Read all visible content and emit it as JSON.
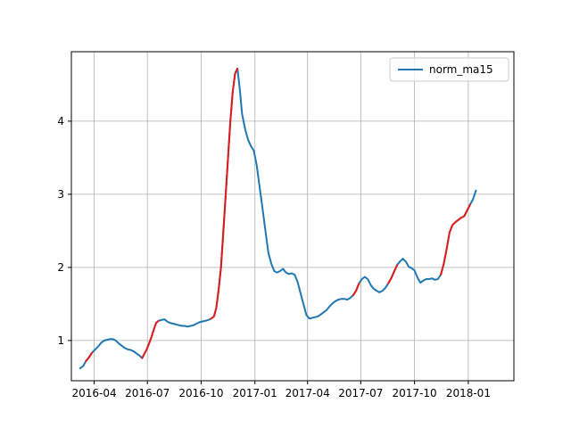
{
  "chart_data": {
    "type": "line",
    "title": "",
    "xlabel": "",
    "ylabel": "",
    "grid": true,
    "legend": {
      "placement": "top-right",
      "entries": [
        "norm_ma15"
      ]
    },
    "x_ticks": [
      "2016-04",
      "2016-07",
      "2016-10",
      "2017-01",
      "2017-04",
      "2017-07",
      "2017-10",
      "2018-01"
    ],
    "y_ticks": [
      1,
      2,
      3,
      4
    ],
    "xlim": [
      "2016-02-22",
      "2018-03-20"
    ],
    "ylim": [
      0.45,
      4.95
    ],
    "colors": {
      "line": "#1f77b4",
      "highlight": "#e31a1c",
      "grid": "#b0b0b0"
    },
    "series": [
      {
        "name": "norm_ma15",
        "points": [
          [
            "2016-03-08",
            0.62
          ],
          [
            "2016-03-13",
            0.65
          ],
          [
            "2016-03-18",
            0.72
          ],
          [
            "2016-03-23",
            0.77
          ],
          [
            "2016-03-28",
            0.83
          ],
          [
            "2016-04-03",
            0.88
          ],
          [
            "2016-04-08",
            0.92
          ],
          [
            "2016-04-13",
            0.97
          ],
          [
            "2016-04-18",
            1.0
          ],
          [
            "2016-04-23",
            1.01
          ],
          [
            "2016-04-28",
            1.02
          ],
          [
            "2016-05-03",
            1.02
          ],
          [
            "2016-05-08",
            1.0
          ],
          [
            "2016-05-13",
            0.96
          ],
          [
            "2016-05-18",
            0.93
          ],
          [
            "2016-05-23",
            0.9
          ],
          [
            "2016-05-28",
            0.88
          ],
          [
            "2016-06-03",
            0.87
          ],
          [
            "2016-06-08",
            0.85
          ],
          [
            "2016-06-13",
            0.82
          ],
          [
            "2016-06-18",
            0.79
          ],
          [
            "2016-06-22",
            0.76
          ],
          [
            "2016-06-26",
            0.82
          ],
          [
            "2016-06-30",
            0.88
          ],
          [
            "2016-07-04",
            0.96
          ],
          [
            "2016-07-08",
            1.05
          ],
          [
            "2016-07-12",
            1.15
          ],
          [
            "2016-07-16",
            1.24
          ],
          [
            "2016-07-20",
            1.27
          ],
          [
            "2016-07-25",
            1.28
          ],
          [
            "2016-07-30",
            1.29
          ],
          [
            "2016-08-04",
            1.26
          ],
          [
            "2016-08-09",
            1.24
          ],
          [
            "2016-08-14",
            1.23
          ],
          [
            "2016-08-19",
            1.22
          ],
          [
            "2016-08-24",
            1.21
          ],
          [
            "2016-08-29",
            1.2
          ],
          [
            "2016-09-03",
            1.2
          ],
          [
            "2016-09-08",
            1.19
          ],
          [
            "2016-09-13",
            1.2
          ],
          [
            "2016-09-18",
            1.21
          ],
          [
            "2016-09-23",
            1.23
          ],
          [
            "2016-09-28",
            1.25
          ],
          [
            "2016-10-03",
            1.26
          ],
          [
            "2016-10-08",
            1.27
          ],
          [
            "2016-10-13",
            1.28
          ],
          [
            "2016-10-18",
            1.3
          ],
          [
            "2016-10-23",
            1.33
          ],
          [
            "2016-10-27",
            1.45
          ],
          [
            "2016-10-31",
            1.7
          ],
          [
            "2016-11-04",
            2.0
          ],
          [
            "2016-11-08",
            2.5
          ],
          [
            "2016-11-12",
            3.0
          ],
          [
            "2016-11-16",
            3.5
          ],
          [
            "2016-11-20",
            4.0
          ],
          [
            "2016-11-24",
            4.4
          ],
          [
            "2016-11-28",
            4.65
          ],
          [
            "2016-12-02",
            4.72
          ],
          [
            "2016-12-06",
            4.45
          ],
          [
            "2016-12-10",
            4.1
          ],
          [
            "2016-12-15",
            3.9
          ],
          [
            "2016-12-20",
            3.75
          ],
          [
            "2016-12-25",
            3.66
          ],
          [
            "2016-12-30",
            3.6
          ],
          [
            "2017-01-04",
            3.4
          ],
          [
            "2017-01-09",
            3.1
          ],
          [
            "2017-01-14",
            2.8
          ],
          [
            "2017-01-19",
            2.5
          ],
          [
            "2017-01-24",
            2.2
          ],
          [
            "2017-01-29",
            2.05
          ],
          [
            "2017-02-03",
            1.95
          ],
          [
            "2017-02-08",
            1.93
          ],
          [
            "2017-02-13",
            1.95
          ],
          [
            "2017-02-18",
            1.98
          ],
          [
            "2017-02-23",
            1.93
          ],
          [
            "2017-02-28",
            1.91
          ],
          [
            "2017-03-05",
            1.92
          ],
          [
            "2017-03-10",
            1.9
          ],
          [
            "2017-03-15",
            1.8
          ],
          [
            "2017-03-20",
            1.65
          ],
          [
            "2017-03-25",
            1.5
          ],
          [
            "2017-03-30",
            1.35
          ],
          [
            "2017-04-04",
            1.3
          ],
          [
            "2017-04-09",
            1.31
          ],
          [
            "2017-04-14",
            1.32
          ],
          [
            "2017-04-19",
            1.33
          ],
          [
            "2017-04-24",
            1.36
          ],
          [
            "2017-04-29",
            1.39
          ],
          [
            "2017-05-04",
            1.42
          ],
          [
            "2017-05-09",
            1.47
          ],
          [
            "2017-05-14",
            1.51
          ],
          [
            "2017-05-19",
            1.54
          ],
          [
            "2017-05-24",
            1.56
          ],
          [
            "2017-05-29",
            1.57
          ],
          [
            "2017-06-03",
            1.57
          ],
          [
            "2017-06-08",
            1.56
          ],
          [
            "2017-06-13",
            1.58
          ],
          [
            "2017-06-18",
            1.62
          ],
          [
            "2017-06-23",
            1.68
          ],
          [
            "2017-06-28",
            1.78
          ],
          [
            "2017-07-03",
            1.84
          ],
          [
            "2017-07-08",
            1.87
          ],
          [
            "2017-07-13",
            1.84
          ],
          [
            "2017-07-18",
            1.76
          ],
          [
            "2017-07-23",
            1.71
          ],
          [
            "2017-07-28",
            1.68
          ],
          [
            "2017-08-02",
            1.66
          ],
          [
            "2017-08-07",
            1.68
          ],
          [
            "2017-08-12",
            1.72
          ],
          [
            "2017-08-17",
            1.78
          ],
          [
            "2017-08-22",
            1.85
          ],
          [
            "2017-08-27",
            1.94
          ],
          [
            "2017-09-01",
            2.03
          ],
          [
            "2017-09-06",
            2.08
          ],
          [
            "2017-09-11",
            2.12
          ],
          [
            "2017-09-16",
            2.08
          ],
          [
            "2017-09-21",
            2.01
          ],
          [
            "2017-09-26",
            1.99
          ],
          [
            "2017-10-01",
            1.96
          ],
          [
            "2017-10-06",
            1.86
          ],
          [
            "2017-10-11",
            1.79
          ],
          [
            "2017-10-16",
            1.82
          ],
          [
            "2017-10-21",
            1.84
          ],
          [
            "2017-10-26",
            1.84
          ],
          [
            "2017-10-31",
            1.85
          ],
          [
            "2017-11-05",
            1.83
          ],
          [
            "2017-11-10",
            1.84
          ],
          [
            "2017-11-15",
            1.9
          ],
          [
            "2017-11-20",
            2.05
          ],
          [
            "2017-11-25",
            2.25
          ],
          [
            "2017-11-30",
            2.48
          ],
          [
            "2017-12-05",
            2.58
          ],
          [
            "2017-12-10",
            2.62
          ],
          [
            "2017-12-15",
            2.65
          ],
          [
            "2017-12-20",
            2.68
          ],
          [
            "2017-12-25",
            2.7
          ],
          [
            "2017-12-30",
            2.78
          ],
          [
            "2018-01-04",
            2.86
          ],
          [
            "2018-01-09",
            2.93
          ],
          [
            "2018-01-14",
            3.05
          ]
        ],
        "highlight_ranges": [
          [
            "2016-03-18",
            "2016-03-28"
          ],
          [
            "2016-06-22",
            "2016-07-20"
          ],
          [
            "2016-10-18",
            "2016-12-02"
          ],
          [
            "2017-06-18",
            "2017-06-28"
          ],
          [
            "2017-08-17",
            "2017-09-01"
          ],
          [
            "2017-11-15",
            "2018-01-04"
          ]
        ]
      }
    ]
  }
}
